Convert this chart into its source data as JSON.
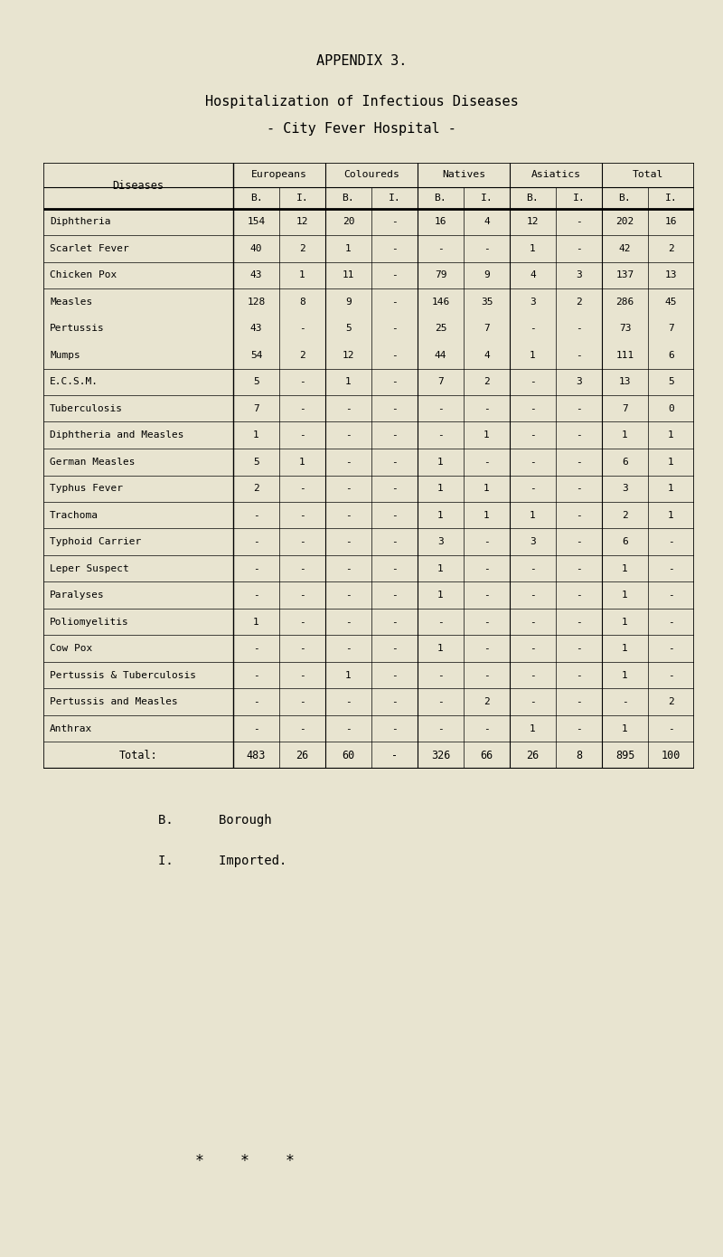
{
  "appendix_title": "APPENDIX 3.",
  "main_title": "Hospitalization of Infectious Diseases",
  "sub_title": "- City Fever Hospital -",
  "bg_color": "#e8e4d0",
  "col_groups": [
    "Europeans",
    "Coloureds",
    "Natives",
    "Asiatics",
    "Total"
  ],
  "col_header": "Diseases",
  "rows": [
    [
      "Diphtheria",
      "154",
      "12",
      "20",
      "-",
      "16",
      "4",
      "12",
      "-",
      "202",
      "16"
    ],
    [
      "Scarlet Fever",
      "40",
      "2",
      "1",
      "-",
      "-",
      "-",
      "1",
      "-",
      "42",
      "2"
    ],
    [
      "Chicken Pox",
      "43",
      "1",
      "11",
      "-",
      "79",
      "9",
      "4",
      "3",
      "137",
      "13"
    ],
    [
      "Measles\nPertussis\nMumps",
      "128\n43\n54",
      "8\n-\n2",
      "9\n5\n12",
      "-\n-\n-",
      "146\n25\n44",
      "35\n7\n4",
      "3\n-\n1",
      "2\n-\n-",
      "286\n73\n111",
      "45\n7\n6"
    ],
    [
      "E.C.S.M.",
      "5",
      "-",
      "1",
      "-",
      "7",
      "2",
      "-",
      "3",
      "13",
      "5"
    ],
    [
      "Tuberculosis",
      "7",
      "-",
      "-",
      "-",
      "-",
      "-",
      "-",
      "-",
      "7",
      "0"
    ],
    [
      "Diphtheria and Measles",
      "1",
      "-",
      "-",
      "-",
      "-",
      "1",
      "-",
      "-",
      "1",
      "1"
    ],
    [
      "German Measles",
      "5",
      "1",
      "-",
      "-",
      "1",
      "-",
      "-",
      "-",
      "6",
      "1"
    ],
    [
      "Typhus Fever",
      "2",
      "-",
      "-",
      "-",
      "1",
      "1",
      "-",
      "-",
      "3",
      "1"
    ],
    [
      "Trachoma",
      "-",
      "-",
      "-",
      "-",
      "1",
      "1",
      "1",
      "-",
      "2",
      "1"
    ],
    [
      "Typhoid Carrier",
      "-",
      "-",
      "-",
      "-",
      "3",
      "-",
      "3",
      "-",
      "6",
      "-"
    ],
    [
      "Leper Suspect",
      "-",
      "-",
      "-",
      "-",
      "1",
      "-",
      "-",
      "-",
      "1",
      "-"
    ],
    [
      "Paralyses",
      "-",
      "-",
      "-",
      "-",
      "1",
      "-",
      "-",
      "-",
      "1",
      "-"
    ],
    [
      "Poliomyelitis",
      "1",
      "-",
      "-",
      "-",
      "-",
      "-",
      "-",
      "-",
      "1",
      "-"
    ],
    [
      "Cow Pox",
      "-",
      "-",
      "-",
      "-",
      "1",
      "-",
      "-",
      "-",
      "1",
      "-"
    ],
    [
      "Pertussis & Tuberculosis",
      "-",
      "-",
      "1",
      "-",
      "-",
      "-",
      "-",
      "-",
      "1",
      "-"
    ],
    [
      "Pertussis and Measles",
      "-",
      "-",
      "-",
      "-",
      "-",
      "2",
      "-",
      "-",
      "-",
      "2"
    ],
    [
      "Anthrax",
      "-",
      "-",
      "-",
      "-",
      "-",
      "-",
      "1",
      "-",
      "1",
      "-"
    ]
  ],
  "totals": [
    "Total:",
    "483",
    "26",
    "60",
    "-",
    "326",
    "66",
    "26",
    "8",
    "895",
    "100"
  ],
  "footnote_b": "B.      Borough",
  "footnote_i": "I.      Imported.",
  "stars": "*    *    *"
}
